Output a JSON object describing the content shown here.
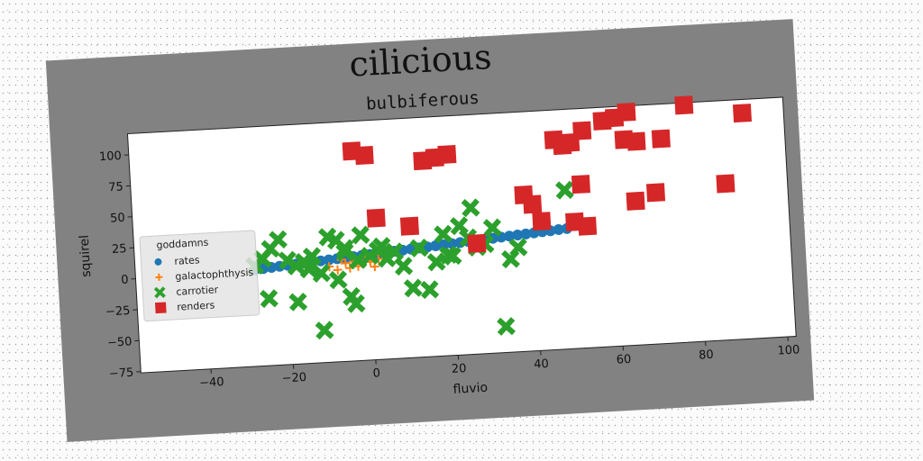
{
  "chart_data": {
    "type": "scatter",
    "title": "cilicious",
    "subtitle": "bulbiferous",
    "xlabel": "fluvio",
    "ylabel": "squirel",
    "xlim": [
      -57,
      102
    ],
    "ylim": [
      -76,
      117
    ],
    "xticks": [
      -40,
      -20,
      0,
      20,
      40,
      60,
      80,
      100
    ],
    "yticks": [
      -75,
      -50,
      -25,
      0,
      25,
      50,
      75,
      100
    ],
    "grid": false,
    "legend": {
      "title": "goddamns",
      "placement": "center-left"
    },
    "series": [
      {
        "name": "rates",
        "marker": "circle",
        "color": "#1f77b4",
        "points": [
          [
            -28,
            2
          ],
          [
            -26,
            2.5
          ],
          [
            -24,
            3
          ],
          [
            -22,
            3.5
          ],
          [
            -20,
            4
          ],
          [
            -18,
            4.5
          ],
          [
            -16,
            5
          ],
          [
            -14,
            5.5
          ],
          [
            -12,
            6
          ],
          [
            -10,
            6.5
          ],
          [
            -8,
            7
          ],
          [
            -6,
            7.5
          ],
          [
            -4,
            8
          ],
          [
            -2,
            8.5
          ],
          [
            0,
            9
          ],
          [
            2,
            9.5
          ],
          [
            4,
            10
          ],
          [
            6,
            10.5
          ],
          [
            8,
            11
          ],
          [
            10,
            11.5
          ],
          [
            12,
            12
          ],
          [
            14,
            12.5
          ],
          [
            16,
            13
          ],
          [
            18,
            13.5
          ],
          [
            20,
            14
          ],
          [
            22,
            14.5
          ],
          [
            24,
            15
          ],
          [
            26,
            15.5
          ],
          [
            28,
            16
          ],
          [
            30,
            16.5
          ],
          [
            32,
            17
          ],
          [
            34,
            17.5
          ],
          [
            36,
            18
          ],
          [
            38,
            18.5
          ],
          [
            40,
            19
          ],
          [
            42,
            19.5
          ],
          [
            44,
            20
          ],
          [
            46,
            20.5
          ],
          [
            48,
            21
          ]
        ]
      },
      {
        "name": "galactophthysis",
        "marker": "plus",
        "color": "#ff7f0e",
        "points": [
          [
            -10,
            1
          ],
          [
            -8,
            -2
          ],
          [
            -6,
            3
          ],
          [
            -5,
            -1
          ],
          [
            -4,
            4
          ],
          [
            -3,
            0
          ],
          [
            -2,
            2
          ],
          [
            0,
            3
          ],
          [
            1,
            -1
          ],
          [
            2,
            5
          ],
          [
            -7,
            6
          ],
          [
            -1,
            7
          ]
        ]
      },
      {
        "name": "carrotier",
        "marker": "x",
        "color": "#2ca02c",
        "points": [
          [
            -28,
            5
          ],
          [
            -26,
            10
          ],
          [
            -24,
            18
          ],
          [
            -22,
            25
          ],
          [
            -20,
            8
          ],
          [
            -18,
            3
          ],
          [
            -16,
            6
          ],
          [
            -14,
            10
          ],
          [
            -12,
            -4
          ],
          [
            -10,
            25
          ],
          [
            -8,
            22
          ],
          [
            -6,
            15
          ],
          [
            -4,
            -30
          ],
          [
            -2,
            25
          ],
          [
            -5,
            -24
          ],
          [
            -12,
            -50
          ],
          [
            -25,
            -22
          ],
          [
            -18,
            -26
          ],
          [
            -3,
            5
          ],
          [
            0,
            8
          ],
          [
            2,
            12
          ],
          [
            4,
            5
          ],
          [
            6,
            10
          ],
          [
            8,
            -2
          ],
          [
            10,
            -20
          ],
          [
            12,
            12
          ],
          [
            14,
            -22
          ],
          [
            16,
            0
          ],
          [
            18,
            22
          ],
          [
            19,
            5
          ],
          [
            20,
            4
          ],
          [
            22,
            28
          ],
          [
            24,
            18
          ],
          [
            25,
            42
          ],
          [
            26,
            10
          ],
          [
            28,
            12
          ],
          [
            30,
            25
          ],
          [
            32,
            -55
          ],
          [
            34,
            -1
          ],
          [
            36,
            8
          ],
          [
            -8,
            -10
          ],
          [
            -6,
            12
          ],
          [
            48,
            52
          ],
          [
            3,
            15
          ],
          [
            -15,
            0
          ]
        ]
      },
      {
        "name": "renders",
        "marker": "square",
        "color": "#d62728",
        "points": [
          [
            -3,
            93
          ],
          [
            0,
            89
          ],
          [
            14,
            82
          ],
          [
            17,
            84
          ],
          [
            20,
            86
          ],
          [
            2,
            38
          ],
          [
            10,
            30
          ],
          [
            38,
            50
          ],
          [
            40,
            42
          ],
          [
            42,
            28
          ],
          [
            26,
            13
          ],
          [
            50,
            26
          ],
          [
            53,
            22
          ],
          [
            46,
            93
          ],
          [
            48,
            88
          ],
          [
            50,
            90
          ],
          [
            53,
            99
          ],
          [
            58,
            106
          ],
          [
            61,
            108
          ],
          [
            64,
            112
          ],
          [
            63,
            90
          ],
          [
            66,
            88
          ],
          [
            72,
            89
          ],
          [
            78,
            115
          ],
          [
            92,
            106
          ],
          [
            52,
            56
          ],
          [
            65,
            40
          ],
          [
            70,
            46
          ],
          [
            87,
            50
          ]
        ]
      }
    ]
  }
}
